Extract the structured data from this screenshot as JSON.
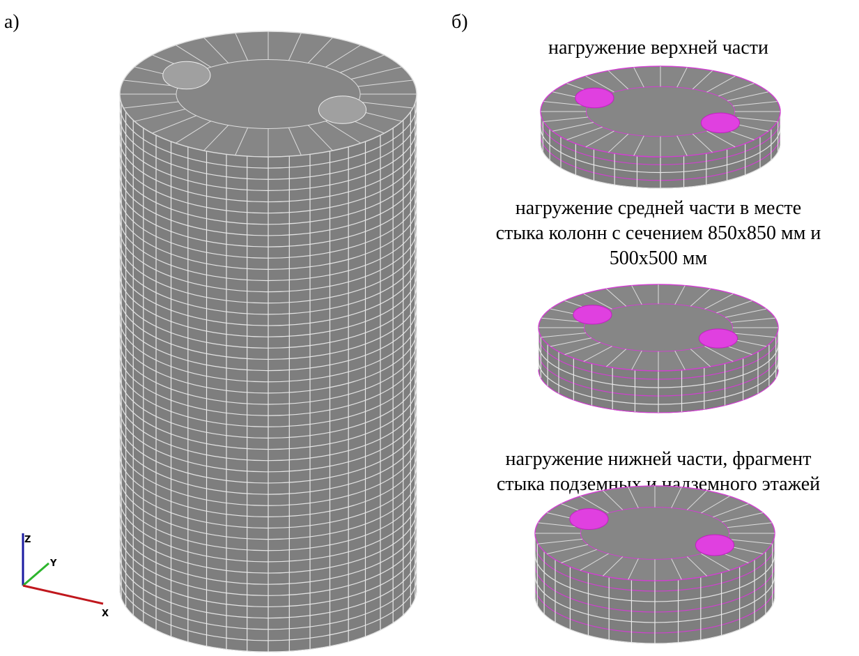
{
  "panels": [
    {
      "label": "а)"
    },
    {
      "label": "б)",
      "captions": [
        {
          "lines": [
            "нагружение верхней части"
          ]
        },
        {
          "lines": [
            "нагружение средней части в месте",
            "стыка колонн с сечением 850х850 мм и",
            "500х500 мм"
          ]
        },
        {
          "lines": [
            "нагружение нижней части, фрагмент",
            "стыка подземных и надземного этажей"
          ]
        }
      ]
    }
  ],
  "axes": {
    "z": "Z",
    "y": "Y",
    "x": "X"
  }
}
